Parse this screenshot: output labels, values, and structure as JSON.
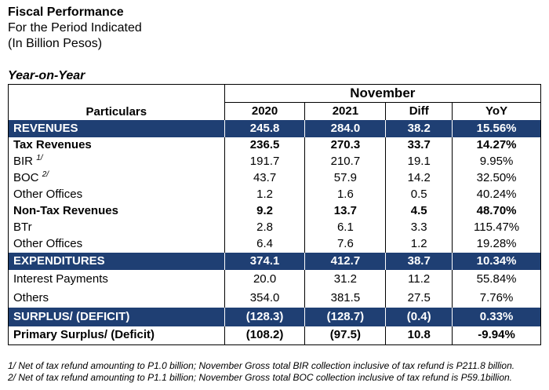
{
  "header": {
    "title": "Fiscal Performance",
    "subtitle": "For the Period Indicated",
    "unit": "(In Billion Pesos)",
    "section": "Year-on-Year"
  },
  "table": {
    "particulars_label": "Particulars",
    "month_label": "November",
    "columns": [
      "2020",
      "2021",
      "Diff",
      "YoY"
    ],
    "rows": [
      {
        "label": "REVENUES",
        "sup": "",
        "v": [
          "245.8",
          "284.0",
          "38.2",
          "15.56%"
        ]
      },
      {
        "label": "Tax Revenues",
        "sup": "",
        "v": [
          "236.5",
          "270.3",
          "33.7",
          "14.27%"
        ]
      },
      {
        "label": "BIR",
        "sup": "1/",
        "v": [
          "191.7",
          "210.7",
          "19.1",
          "9.95%"
        ]
      },
      {
        "label": "BOC",
        "sup": "2/",
        "v": [
          "43.7",
          "57.9",
          "14.2",
          "32.50%"
        ]
      },
      {
        "label": "Other Offices",
        "sup": "",
        "v": [
          "1.2",
          "1.6",
          "0.5",
          "40.24%"
        ]
      },
      {
        "label": "Non-Tax Revenues",
        "sup": "",
        "v": [
          "9.2",
          "13.7",
          "4.5",
          "48.70%"
        ]
      },
      {
        "label": "BTr",
        "sup": "",
        "v": [
          "2.8",
          "6.1",
          "3.3",
          "115.47%"
        ]
      },
      {
        "label": "Other Offices",
        "sup": "",
        "v": [
          "6.4",
          "7.6",
          "1.2",
          "19.28%"
        ]
      },
      {
        "label": "EXPENDITURES",
        "sup": "",
        "v": [
          "374.1",
          "412.7",
          "38.7",
          "10.34%"
        ]
      },
      {
        "label": "Interest Payments",
        "sup": "",
        "v": [
          "20.0",
          "31.2",
          "11.2",
          "55.84%"
        ]
      },
      {
        "label": "Others",
        "sup": "",
        "v": [
          "354.0",
          "381.5",
          "27.5",
          "7.76%"
        ]
      },
      {
        "label": "SURPLUS/ (DEFICIT)",
        "sup": "",
        "v": [
          "(128.3)",
          "(128.7)",
          "(0.4)",
          "0.33%"
        ]
      },
      {
        "label": "Primary Surplus/ (Deficit)",
        "sup": "",
        "v": [
          "(108.2)",
          "(97.5)",
          "10.8",
          "-9.94%"
        ]
      }
    ]
  },
  "footnotes": [
    "1/ Net of tax refund amounting to P1.0 billion; November Gross total BIR collection inclusive of tax refund is P211.8 billion.",
    "2/ Net of tax refund amounting to P1.1 billion; November Gross total BOC collection inclusive of tax refund is P59.1billion."
  ],
  "colors": {
    "band": "#1f3f73",
    "band_text": "#ffffff"
  }
}
